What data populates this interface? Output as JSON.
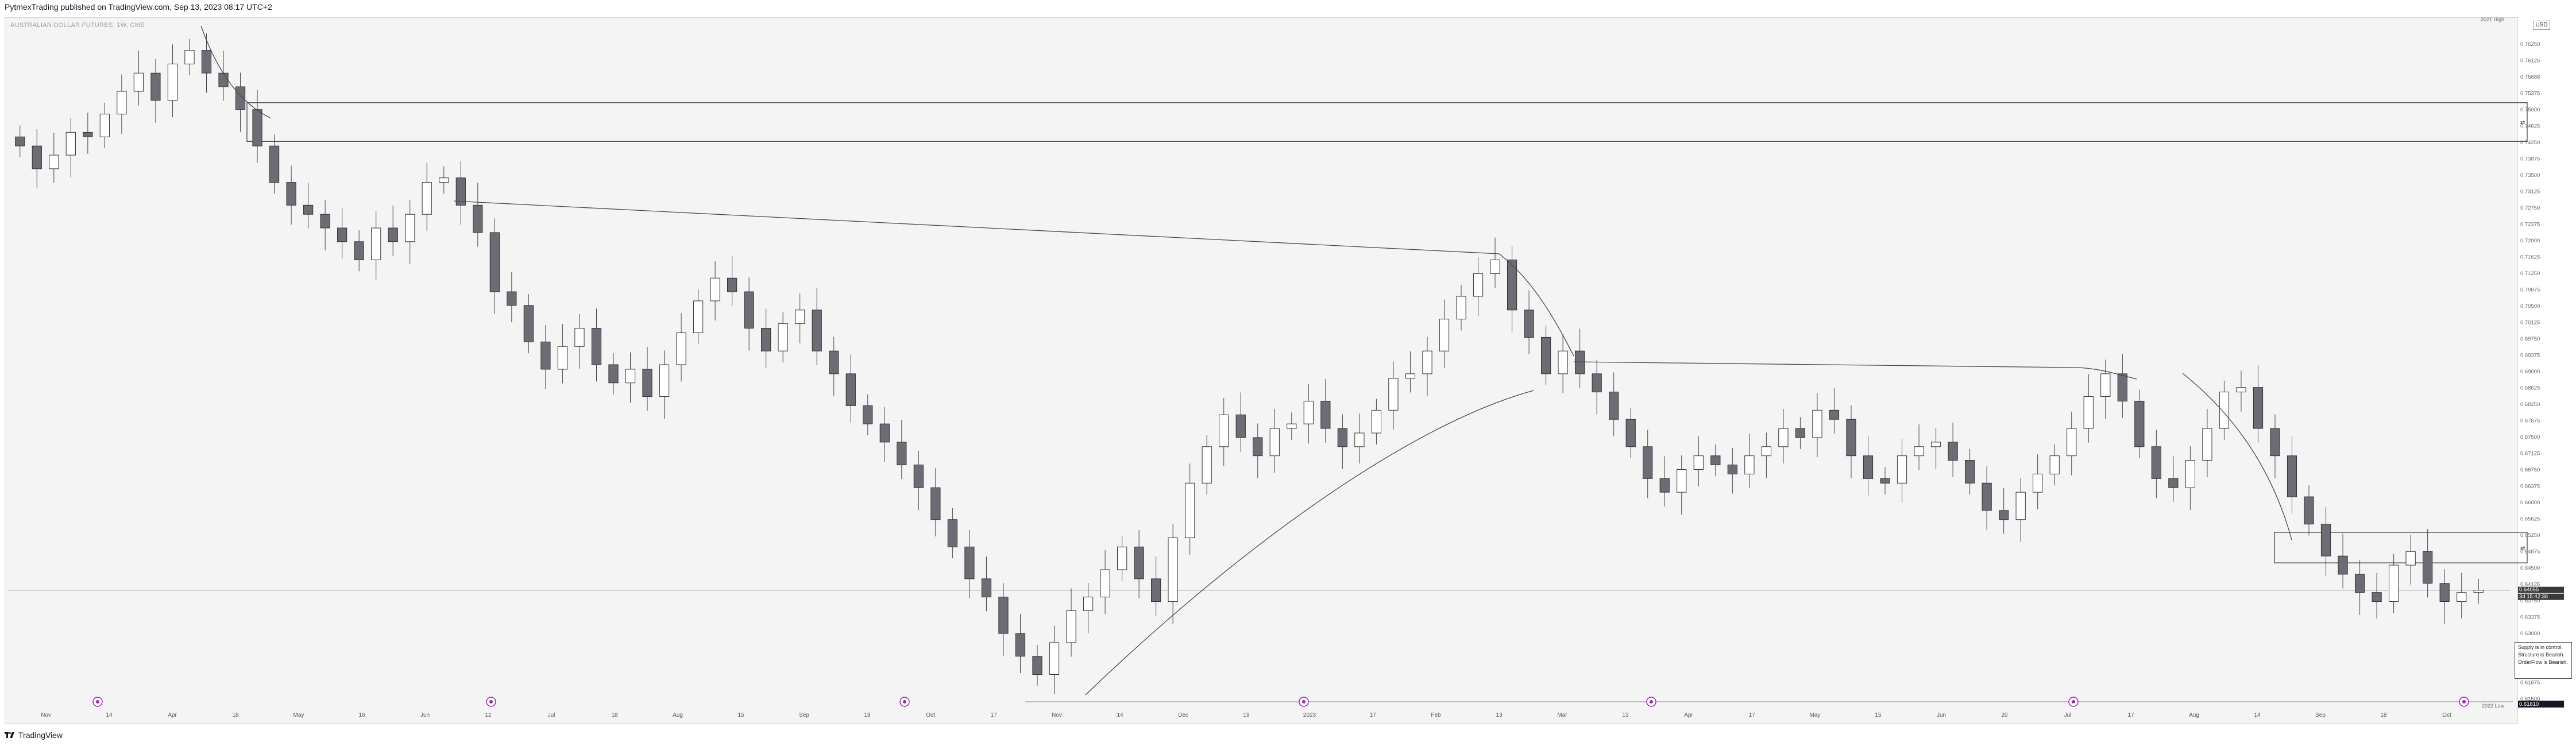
{
  "header": {
    "publisher": "PytmexTrading published on TradingView.com, Sep 13, 2023 08:17 UTC+2"
  },
  "symbol": {
    "name": "AUSTRALIAN DOLLAR FUTURES, 1W, CME",
    "currency": "USD"
  },
  "footer": {
    "brand": "TradingView"
  },
  "info_box": {
    "line1": "Supply is in control.",
    "line2": "Structure is Bearish.",
    "line3": "OrderFlow is Bearish."
  },
  "price_tags": {
    "high": {
      "label": "2021 High"
    },
    "current": {
      "value": "0.64055",
      "countdown": "3d 15:42:36"
    },
    "low": {
      "label": "2022 Low",
      "value": "0.61810"
    }
  },
  "colors": {
    "bear": "#6c6c74",
    "bull": "#ffffff",
    "line": "#4a4a4a",
    "event_marker": "#9c27b0"
  },
  "events": [
    "fed-icon",
    "fed-icon",
    "fed-icon",
    "fed-icon",
    "fed-icon",
    "fed-icon",
    "fed-icon"
  ],
  "chart_data": {
    "type": "candlestick",
    "title": "AUSTRALIAN DOLLAR FUTURES, 1W, CME",
    "y_ticks": [
      "0.76250",
      "0.76125",
      "0.75688",
      "0.75375",
      "0.75000",
      "0.74625",
      "0.74250",
      "0.73875",
      "0.73500",
      "0.73125",
      "0.72750",
      "0.72375",
      "0.72000",
      "0.71625",
      "0.71250",
      "0.70875",
      "0.70500",
      "0.70125",
      "0.69750",
      "0.69375",
      "0.69000",
      "0.68625",
      "0.68250",
      "0.67875",
      "0.67500",
      "0.67125",
      "0.66750",
      "0.66375",
      "0.66000",
      "0.65625",
      "0.65250",
      "0.64875",
      "0.64500",
      "0.64125",
      "0.63750",
      "0.63375",
      "0.63000",
      "0.62625",
      "0.62250",
      "0.61875",
      "0.61500"
    ],
    "x_ticks": [
      "Nov",
      "14",
      "Apr",
      "18",
      "May",
      "16",
      "Jun",
      "12",
      "Jul",
      "18",
      "Aug",
      "15",
      "Sep",
      "19",
      "Oct",
      "17",
      "Nov",
      "14",
      "Dec",
      "19",
      "2023",
      "17",
      "Feb",
      "13",
      "Mar",
      "13",
      "Apr",
      "17",
      "May",
      "15",
      "Jun",
      "20",
      "Jul",
      "17",
      "Aug",
      "14",
      "Sep",
      "18",
      "Oct"
    ],
    "ylim": [
      0.615,
      0.765
    ],
    "supply_zones": [
      {
        "top": 0.7475,
        "bottom": 0.739
      },
      {
        "top": 0.6532,
        "bottom": 0.6465
      }
    ],
    "close": [
      0.738,
      0.733,
      0.736,
      0.741,
      0.74,
      0.745,
      0.75,
      0.754,
      0.748,
      0.756,
      0.759,
      0.754,
      0.751,
      0.746,
      0.738,
      0.73,
      0.725,
      0.723,
      0.72,
      0.717,
      0.713,
      0.72,
      0.717,
      0.723,
      0.73,
      0.731,
      0.725,
      0.719,
      0.706,
      0.703,
      0.695,
      0.689,
      0.694,
      0.698,
      0.69,
      0.686,
      0.689,
      0.683,
      0.69,
      0.697,
      0.704,
      0.709,
      0.706,
      0.698,
      0.693,
      0.699,
      0.702,
      0.693,
      0.688,
      0.681,
      0.677,
      0.673,
      0.668,
      0.663,
      0.656,
      0.65,
      0.643,
      0.639,
      0.631,
      0.626,
      0.622,
      0.629,
      0.636,
      0.639,
      0.645,
      0.65,
      0.643,
      0.638,
      0.652,
      0.664,
      0.672,
      0.679,
      0.674,
      0.67,
      0.676,
      0.677,
      0.682,
      0.676,
      0.672,
      0.675,
      0.68,
      0.687,
      0.688,
      0.693,
      0.7,
      0.705,
      0.71,
      0.713,
      0.702,
      0.696,
      0.688,
      0.693,
      0.688,
      0.684,
      0.678,
      0.672,
      0.665,
      0.662,
      0.667,
      0.67,
      0.668,
      0.666,
      0.67,
      0.672,
      0.676,
      0.674,
      0.68,
      0.678,
      0.67,
      0.665,
      0.664,
      0.67,
      0.672,
      0.673,
      0.669,
      0.664,
      0.658,
      0.656,
      0.662,
      0.666,
      0.67,
      0.676,
      0.683,
      0.688,
      0.682,
      0.672,
      0.665,
      0.663,
      0.669,
      0.676,
      0.684,
      0.685,
      0.676,
      0.67,
      0.661,
      0.655,
      0.648,
      0.644,
      0.64,
      0.638,
      0.646,
      0.649,
      0.642,
      0.638,
      0.64,
      0.6405
    ]
  }
}
